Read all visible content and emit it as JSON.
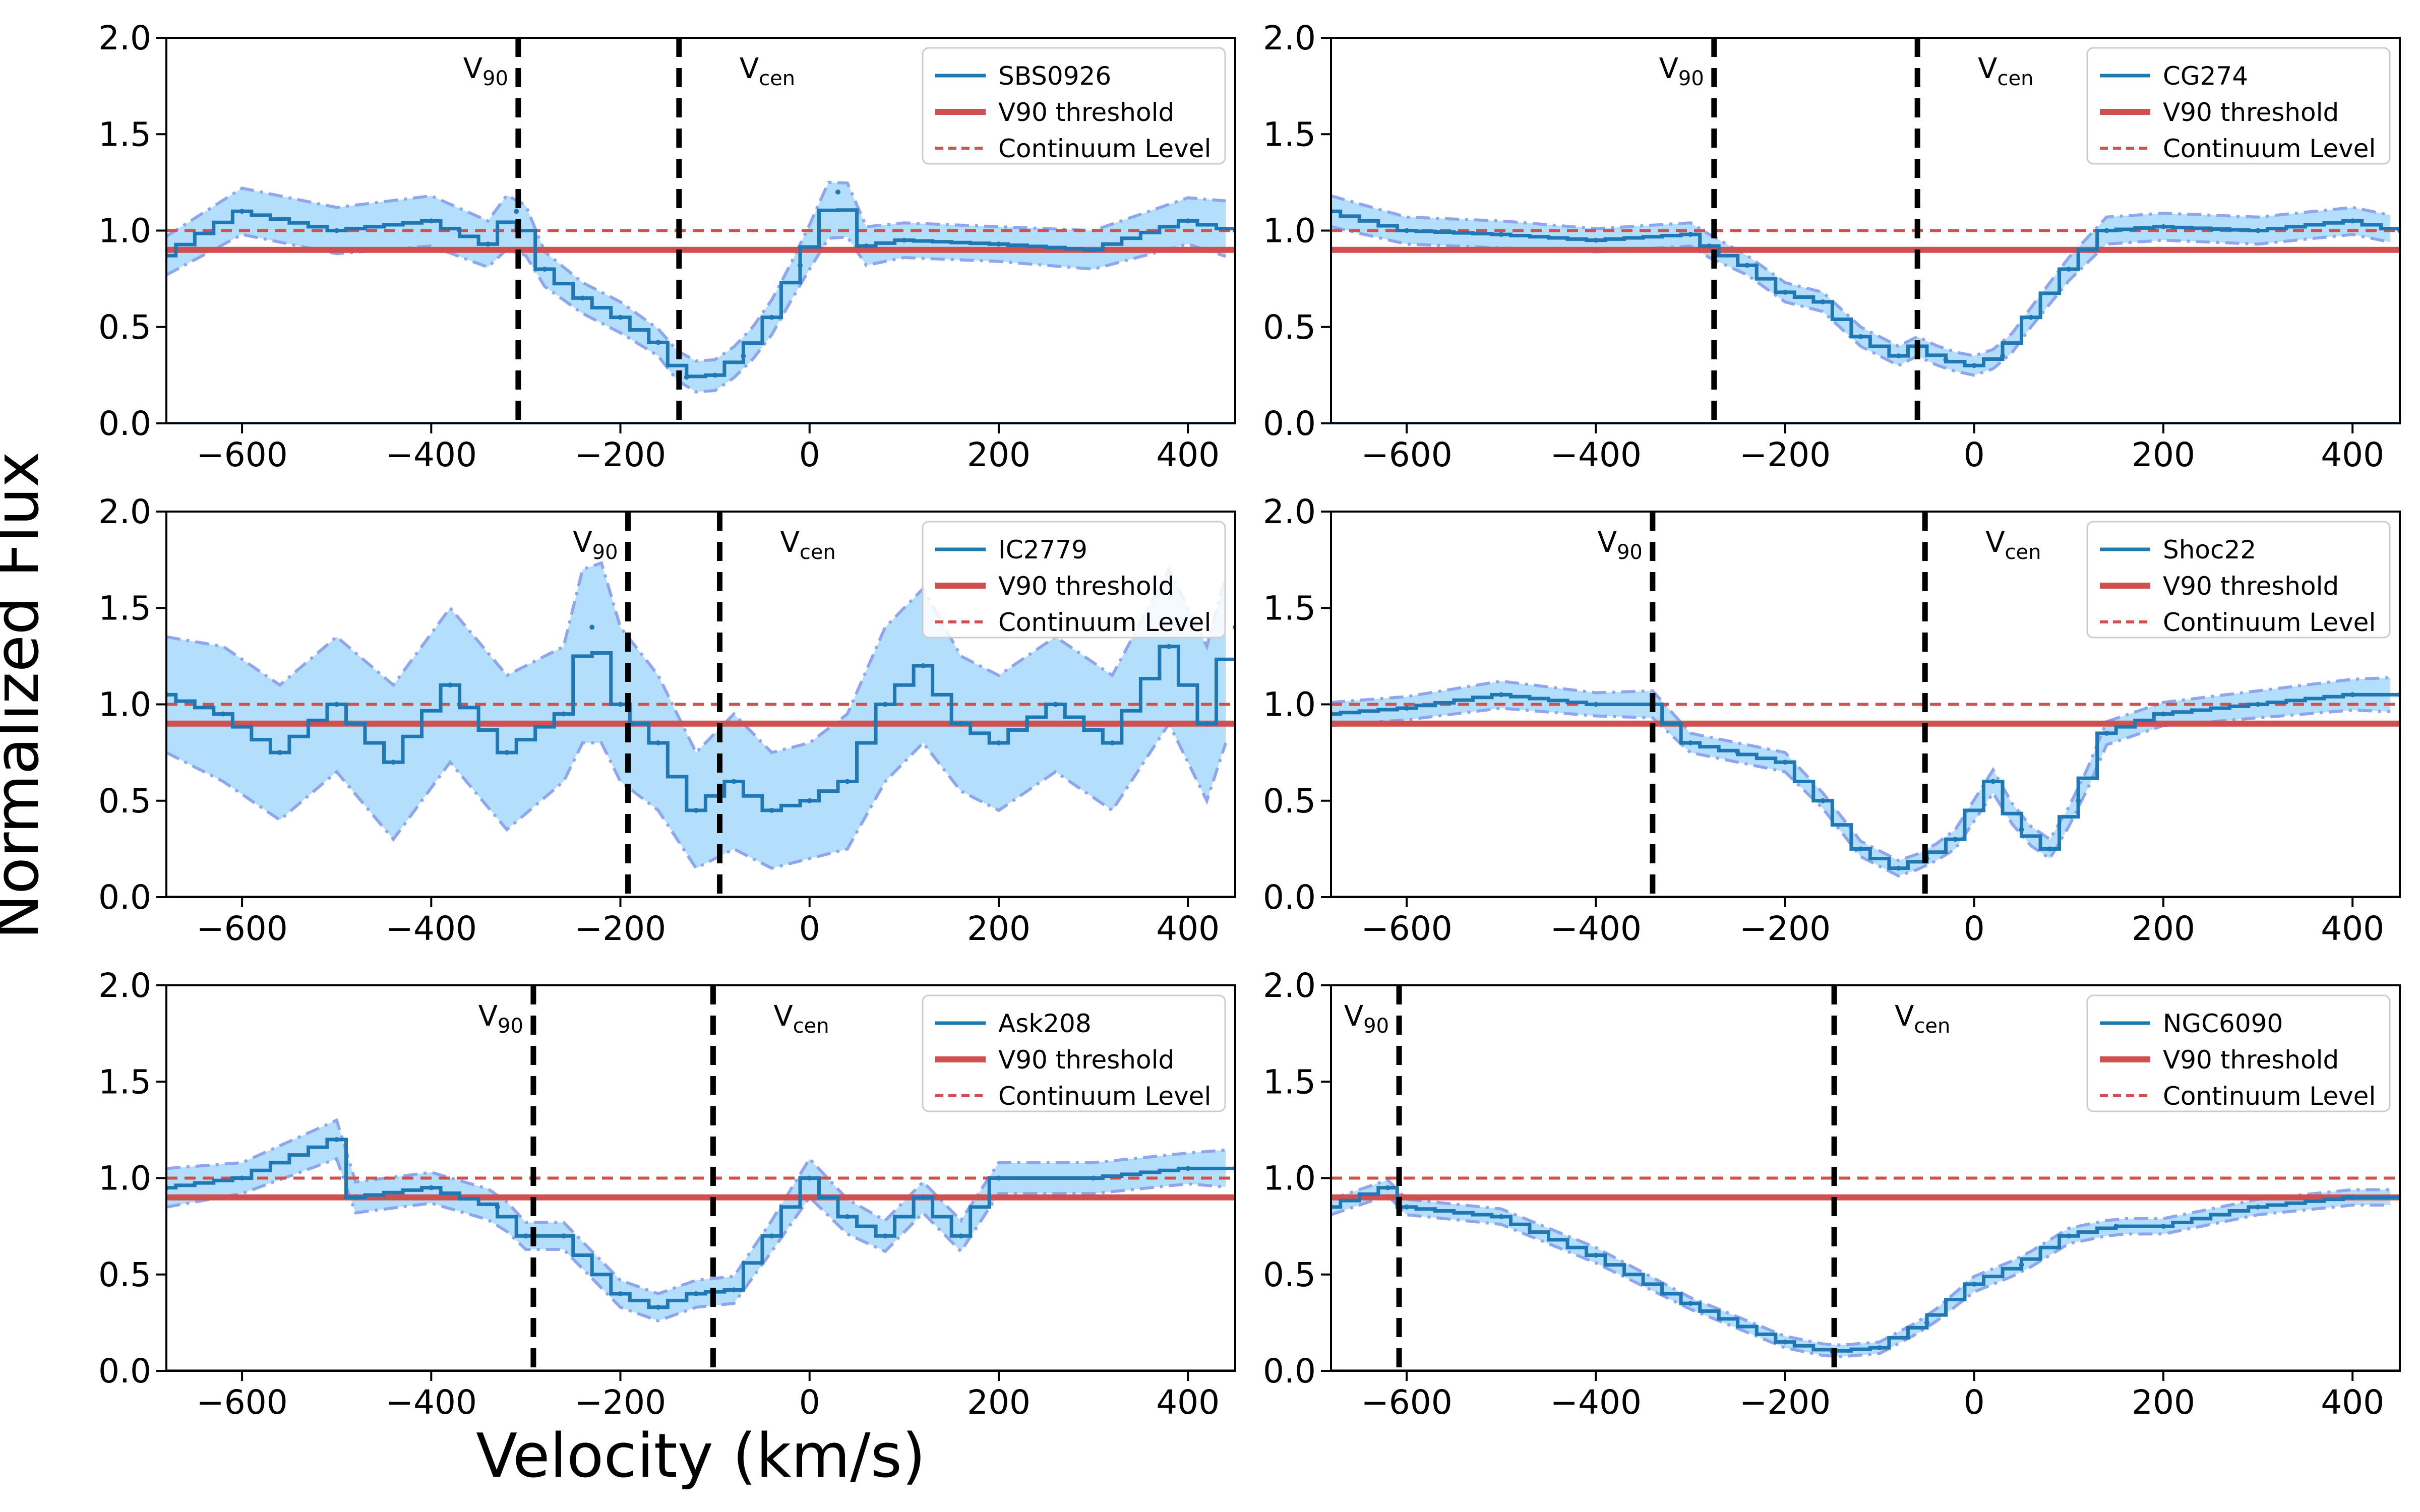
{
  "figure": {
    "ylabel": "Normalized Flux",
    "xlabel": "Velocity (km/s)"
  },
  "chart_data": [
    {
      "type": "line",
      "title": "",
      "xlabel": "Velocity (km/s)",
      "ylabel": "Normalized Flux",
      "xlim": [
        -680,
        450
      ],
      "ylim": [
        0,
        2
      ],
      "xticks": [
        -600,
        -400,
        -200,
        0,
        200,
        400
      ],
      "yticks": [
        0.0,
        0.5,
        1.0,
        1.5,
        2.0
      ],
      "grid": false,
      "legend_position": "top-right",
      "legend": [
        "SBS0926",
        "V90 threshold",
        "Continuum Level"
      ],
      "v90": {
        "label": "V90",
        "value": -308
      },
      "vcen": {
        "label": "Vcen",
        "value": -138
      },
      "threshold": 0.9,
      "continuum": 1.0,
      "series": [
        {
          "name": "SBS0926",
          "x": [
            -680,
            -600,
            -500,
            -400,
            -340,
            -310,
            -280,
            -240,
            -200,
            -160,
            -130,
            -100,
            -70,
            -40,
            -10,
            30,
            60,
            100,
            200,
            300,
            400,
            450
          ],
          "y": [
            0.87,
            1.1,
            1.0,
            1.05,
            0.93,
            1.1,
            0.8,
            0.65,
            0.55,
            0.42,
            0.24,
            0.25,
            0.35,
            0.55,
            0.82,
            1.2,
            0.92,
            0.95,
            0.93,
            0.9,
            1.05,
            1.0
          ],
          "err": [
            0.1,
            0.12,
            0.12,
            0.13,
            0.12,
            0.15,
            0.09,
            0.08,
            0.08,
            0.07,
            0.08,
            0.08,
            0.08,
            0.09,
            0.1,
            0.16,
            0.1,
            0.09,
            0.09,
            0.1,
            0.12,
            0.15
          ]
        }
      ]
    },
    {
      "type": "line",
      "title": "",
      "xlabel": "",
      "ylabel": "",
      "xlim": [
        -680,
        450
      ],
      "ylim": [
        0,
        2
      ],
      "xticks": [
        -600,
        -400,
        -200,
        0,
        200,
        400
      ],
      "yticks": [
        0.0,
        0.5,
        1.0,
        1.5,
        2.0
      ],
      "grid": false,
      "legend_position": "top-right",
      "legend": [
        "CG274",
        "V90 threshold",
        "Continuum Level"
      ],
      "v90": {
        "label": "V90",
        "value": -275
      },
      "vcen": {
        "label": "Vcen",
        "value": -60
      },
      "threshold": 0.9,
      "continuum": 1.0,
      "series": [
        {
          "name": "CG274",
          "x": [
            -680,
            -600,
            -500,
            -400,
            -300,
            -280,
            -240,
            -200,
            -160,
            -120,
            -80,
            -60,
            -30,
            0,
            30,
            60,
            100,
            140,
            200,
            300,
            400,
            450
          ],
          "y": [
            1.1,
            1.0,
            0.98,
            0.95,
            0.98,
            0.92,
            0.82,
            0.68,
            0.63,
            0.45,
            0.35,
            0.4,
            0.33,
            0.3,
            0.35,
            0.55,
            0.8,
            1.0,
            1.02,
            1.0,
            1.05,
            1.0
          ],
          "err": [
            0.08,
            0.07,
            0.07,
            0.06,
            0.06,
            0.06,
            0.05,
            0.05,
            0.05,
            0.05,
            0.05,
            0.05,
            0.05,
            0.05,
            0.05,
            0.05,
            0.06,
            0.07,
            0.07,
            0.07,
            0.07,
            0.07
          ]
        }
      ]
    },
    {
      "type": "line",
      "title": "",
      "xlabel": "",
      "ylabel": "",
      "xlim": [
        -680,
        450
      ],
      "ylim": [
        0,
        2
      ],
      "xticks": [
        -600,
        -400,
        -200,
        0,
        200,
        400
      ],
      "yticks": [
        0.0,
        0.5,
        1.0,
        1.5,
        2.0
      ],
      "grid": false,
      "legend_position": "top-right",
      "legend": [
        "IC2779",
        "V90 threshold",
        "Continuum Level"
      ],
      "v90": {
        "label": "V90",
        "value": -192
      },
      "vcen": {
        "label": "Vcen",
        "value": -95
      },
      "threshold": 0.9,
      "continuum": 1.0,
      "series": [
        {
          "name": "IC2779",
          "x": [
            -680,
            -620,
            -560,
            -500,
            -440,
            -380,
            -320,
            -260,
            -230,
            -200,
            -160,
            -120,
            -80,
            -40,
            0,
            40,
            80,
            120,
            160,
            200,
            260,
            320,
            380,
            420,
            450
          ],
          "y": [
            1.05,
            0.95,
            0.75,
            1.0,
            0.7,
            1.1,
            0.75,
            0.95,
            1.4,
            1.0,
            0.8,
            0.45,
            0.6,
            0.45,
            0.5,
            0.6,
            1.0,
            1.2,
            0.9,
            0.8,
            1.0,
            0.8,
            1.3,
            0.9,
            1.4
          ],
          "err": [
            0.3,
            0.35,
            0.35,
            0.35,
            0.4,
            0.4,
            0.4,
            0.35,
            0.5,
            0.4,
            0.35,
            0.3,
            0.35,
            0.3,
            0.3,
            0.35,
            0.4,
            0.4,
            0.35,
            0.35,
            0.35,
            0.35,
            0.4,
            0.4,
            0.45
          ]
        }
      ]
    },
    {
      "type": "line",
      "title": "",
      "xlabel": "",
      "ylabel": "",
      "xlim": [
        -680,
        450
      ],
      "ylim": [
        0,
        2
      ],
      "xticks": [
        -600,
        -400,
        -200,
        0,
        200,
        400
      ],
      "yticks": [
        0.0,
        0.5,
        1.0,
        1.5,
        2.0
      ],
      "grid": false,
      "legend_position": "top-right",
      "legend": [
        "Shoc22",
        "V90 threshold",
        "Continuum Level"
      ],
      "v90": {
        "label": "V90",
        "value": -340
      },
      "vcen": {
        "label": "Vcen",
        "value": -52
      },
      "threshold": 0.9,
      "continuum": 1.0,
      "series": [
        {
          "name": "Shoc22",
          "x": [
            -680,
            -600,
            -500,
            -400,
            -340,
            -300,
            -250,
            -200,
            -160,
            -120,
            -80,
            -50,
            -20,
            20,
            50,
            80,
            110,
            140,
            200,
            300,
            400,
            450
          ],
          "y": [
            0.95,
            0.98,
            1.05,
            1.0,
            1.0,
            0.8,
            0.75,
            0.7,
            0.5,
            0.25,
            0.15,
            0.2,
            0.3,
            0.6,
            0.35,
            0.25,
            0.5,
            0.85,
            0.95,
            1.0,
            1.05,
            1.05
          ],
          "err": [
            0.06,
            0.06,
            0.07,
            0.06,
            0.07,
            0.05,
            0.05,
            0.05,
            0.04,
            0.04,
            0.04,
            0.04,
            0.05,
            0.06,
            0.05,
            0.05,
            0.05,
            0.06,
            0.06,
            0.07,
            0.08,
            0.09
          ]
        }
      ]
    },
    {
      "type": "line",
      "title": "",
      "xlabel": "Velocity (km/s)",
      "ylabel": "",
      "xlim": [
        -680,
        450
      ],
      "ylim": [
        0,
        2
      ],
      "xticks": [
        -600,
        -400,
        -200,
        0,
        200,
        400
      ],
      "yticks": [
        0.0,
        0.5,
        1.0,
        1.5,
        2.0
      ],
      "grid": false,
      "legend_position": "top-right",
      "legend": [
        "Ask208",
        "V90 threshold",
        "Continuum Level"
      ],
      "v90": {
        "label": "V90",
        "value": -292
      },
      "vcen": {
        "label": "Vcen",
        "value": -102
      },
      "threshold": 0.9,
      "continuum": 1.0,
      "series": [
        {
          "name": "Ask208",
          "x": [
            -680,
            -600,
            -500,
            -480,
            -400,
            -330,
            -300,
            -260,
            -200,
            -160,
            -120,
            -80,
            -40,
            0,
            40,
            80,
            120,
            160,
            200,
            300,
            400,
            450
          ],
          "y": [
            0.95,
            1.0,
            1.2,
            0.9,
            0.95,
            0.85,
            0.7,
            0.7,
            0.4,
            0.33,
            0.4,
            0.42,
            0.7,
            1.0,
            0.8,
            0.7,
            0.9,
            0.7,
            1.0,
            1.0,
            1.05,
            1.05
          ],
          "err": [
            0.1,
            0.08,
            0.1,
            0.08,
            0.08,
            0.08,
            0.07,
            0.07,
            0.07,
            0.07,
            0.07,
            0.07,
            0.08,
            0.1,
            0.09,
            0.08,
            0.08,
            0.08,
            0.08,
            0.08,
            0.08,
            0.1
          ]
        }
      ]
    },
    {
      "type": "line",
      "title": "",
      "xlabel": "",
      "ylabel": "",
      "xlim": [
        -680,
        450
      ],
      "ylim": [
        0,
        2
      ],
      "xticks": [
        -600,
        -400,
        -200,
        0,
        200,
        400
      ],
      "yticks": [
        0.0,
        0.5,
        1.0,
        1.5,
        2.0
      ],
      "grid": false,
      "legend_position": "top-right",
      "legend": [
        "NGC6090",
        "V90 threshold",
        "Continuum Level"
      ],
      "v90": {
        "label": "V90",
        "value": -608
      },
      "vcen": {
        "label": "Vcen",
        "value": -148
      },
      "threshold": 0.9,
      "continuum": 1.0,
      "series": [
        {
          "name": "NGC6090",
          "x": [
            -680,
            -620,
            -600,
            -500,
            -400,
            -300,
            -200,
            -150,
            -100,
            -50,
            0,
            50,
            100,
            150,
            200,
            300,
            400,
            450
          ],
          "y": [
            0.85,
            0.95,
            0.85,
            0.8,
            0.6,
            0.35,
            0.15,
            0.1,
            0.12,
            0.25,
            0.45,
            0.55,
            0.7,
            0.75,
            0.75,
            0.85,
            0.9,
            0.9
          ],
          "err": [
            0.04,
            0.04,
            0.04,
            0.04,
            0.04,
            0.03,
            0.03,
            0.03,
            0.03,
            0.03,
            0.04,
            0.04,
            0.04,
            0.04,
            0.04,
            0.04,
            0.04,
            0.04
          ]
        }
      ]
    }
  ]
}
